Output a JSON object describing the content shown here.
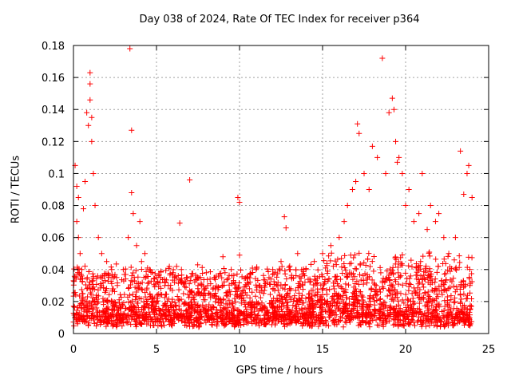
{
  "chart_data": {
    "type": "scatter",
    "title": "Day 038 of 2024, Rate Of TEC Index for receiver p364",
    "xlabel": "GPS time / hours",
    "ylabel": "ROTI / TECUs",
    "xlim": [
      0,
      25
    ],
    "ylim": [
      0,
      0.18
    ],
    "xticks": [
      0,
      5,
      10,
      15,
      20,
      25
    ],
    "yticks": [
      0,
      0.02,
      0.04,
      0.06,
      0.08,
      0.1,
      0.12,
      0.14,
      0.16,
      0.18
    ],
    "xtick_labels": [
      "0",
      "5",
      "10",
      "15",
      "20",
      "25"
    ],
    "ytick_labels": [
      "0",
      "0.02",
      "0.04",
      "0.06",
      "0.08",
      "0.1",
      "0.12",
      "0.14",
      "0.16",
      "0.18"
    ],
    "grid": true,
    "marker": "plus",
    "color": "#ff0000",
    "series": [
      {
        "x": [
          0.1,
          0.1,
          0.2,
          0.2,
          0.3,
          0.3,
          0.4,
          0.5,
          0.6,
          0.7,
          0.8,
          0.9,
          1.0,
          1.0,
          1.0,
          1.1,
          1.1,
          1.2,
          1.3,
          1.5,
          1.7,
          2.0,
          2.3,
          2.6,
          3.0,
          3.3,
          3.4,
          3.5,
          3.5,
          3.6,
          3.8,
          4.0,
          4.1,
          4.3,
          4.6,
          5.0,
          5.5,
          6.0,
          6.4,
          6.8,
          7.0,
          7.5,
          8.0,
          8.5,
          9.0,
          9.5,
          9.9,
          10.0,
          10.0,
          10.5,
          11.0,
          11.5,
          12.0,
          12.5,
          12.7,
          12.8,
          13.0,
          13.5,
          14.0,
          14.5,
          15.0,
          15.5,
          16.0,
          16.3,
          16.5,
          16.8,
          17.0,
          17.1,
          17.2,
          17.5,
          17.8,
          18.0,
          18.3,
          18.6,
          18.8,
          19.0,
          19.2,
          19.3,
          19.4,
          19.5,
          19.6,
          19.8,
          20.0,
          20.2,
          20.5,
          20.8,
          21.0,
          21.3,
          21.5,
          21.8,
          22.0,
          22.3,
          22.6,
          23.0,
          23.3,
          23.5,
          23.7,
          23.8,
          24.0
        ],
        "y": [
          0.035,
          0.105,
          0.07,
          0.092,
          0.06,
          0.085,
          0.05,
          0.04,
          0.078,
          0.095,
          0.138,
          0.13,
          0.163,
          0.156,
          0.146,
          0.135,
          0.12,
          0.1,
          0.08,
          0.06,
          0.05,
          0.045,
          0.04,
          0.035,
          0.04,
          0.06,
          0.178,
          0.127,
          0.088,
          0.075,
          0.055,
          0.07,
          0.045,
          0.05,
          0.04,
          0.035,
          0.03,
          0.038,
          0.069,
          0.035,
          0.096,
          0.03,
          0.038,
          0.035,
          0.048,
          0.04,
          0.085,
          0.082,
          0.049,
          0.035,
          0.04,
          0.03,
          0.04,
          0.045,
          0.073,
          0.066,
          0.04,
          0.05,
          0.04,
          0.045,
          0.05,
          0.055,
          0.06,
          0.07,
          0.08,
          0.09,
          0.095,
          0.131,
          0.125,
          0.1,
          0.09,
          0.117,
          0.11,
          0.172,
          0.1,
          0.138,
          0.147,
          0.14,
          0.12,
          0.107,
          0.11,
          0.1,
          0.08,
          0.09,
          0.07,
          0.075,
          0.1,
          0.065,
          0.08,
          0.07,
          0.075,
          0.06,
          0.05,
          0.06,
          0.114,
          0.087,
          0.1,
          0.105,
          0.085
        ]
      }
    ]
  }
}
